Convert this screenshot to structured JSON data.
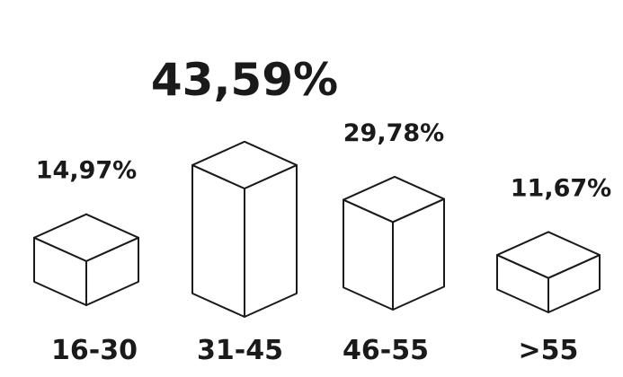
{
  "chart_data": {
    "type": "bar",
    "categories": [
      "16-30",
      "31-45",
      "46-55",
      ">55"
    ],
    "values": [
      14.97,
      43.59,
      29.78,
      11.67
    ],
    "value_labels": [
      "14,97%",
      "43,59%",
      "29,78%",
      "11,67%"
    ],
    "highlight_index": 1,
    "colors": {
      "ink": "#1a1a1a",
      "fill": "#ffffff"
    }
  }
}
